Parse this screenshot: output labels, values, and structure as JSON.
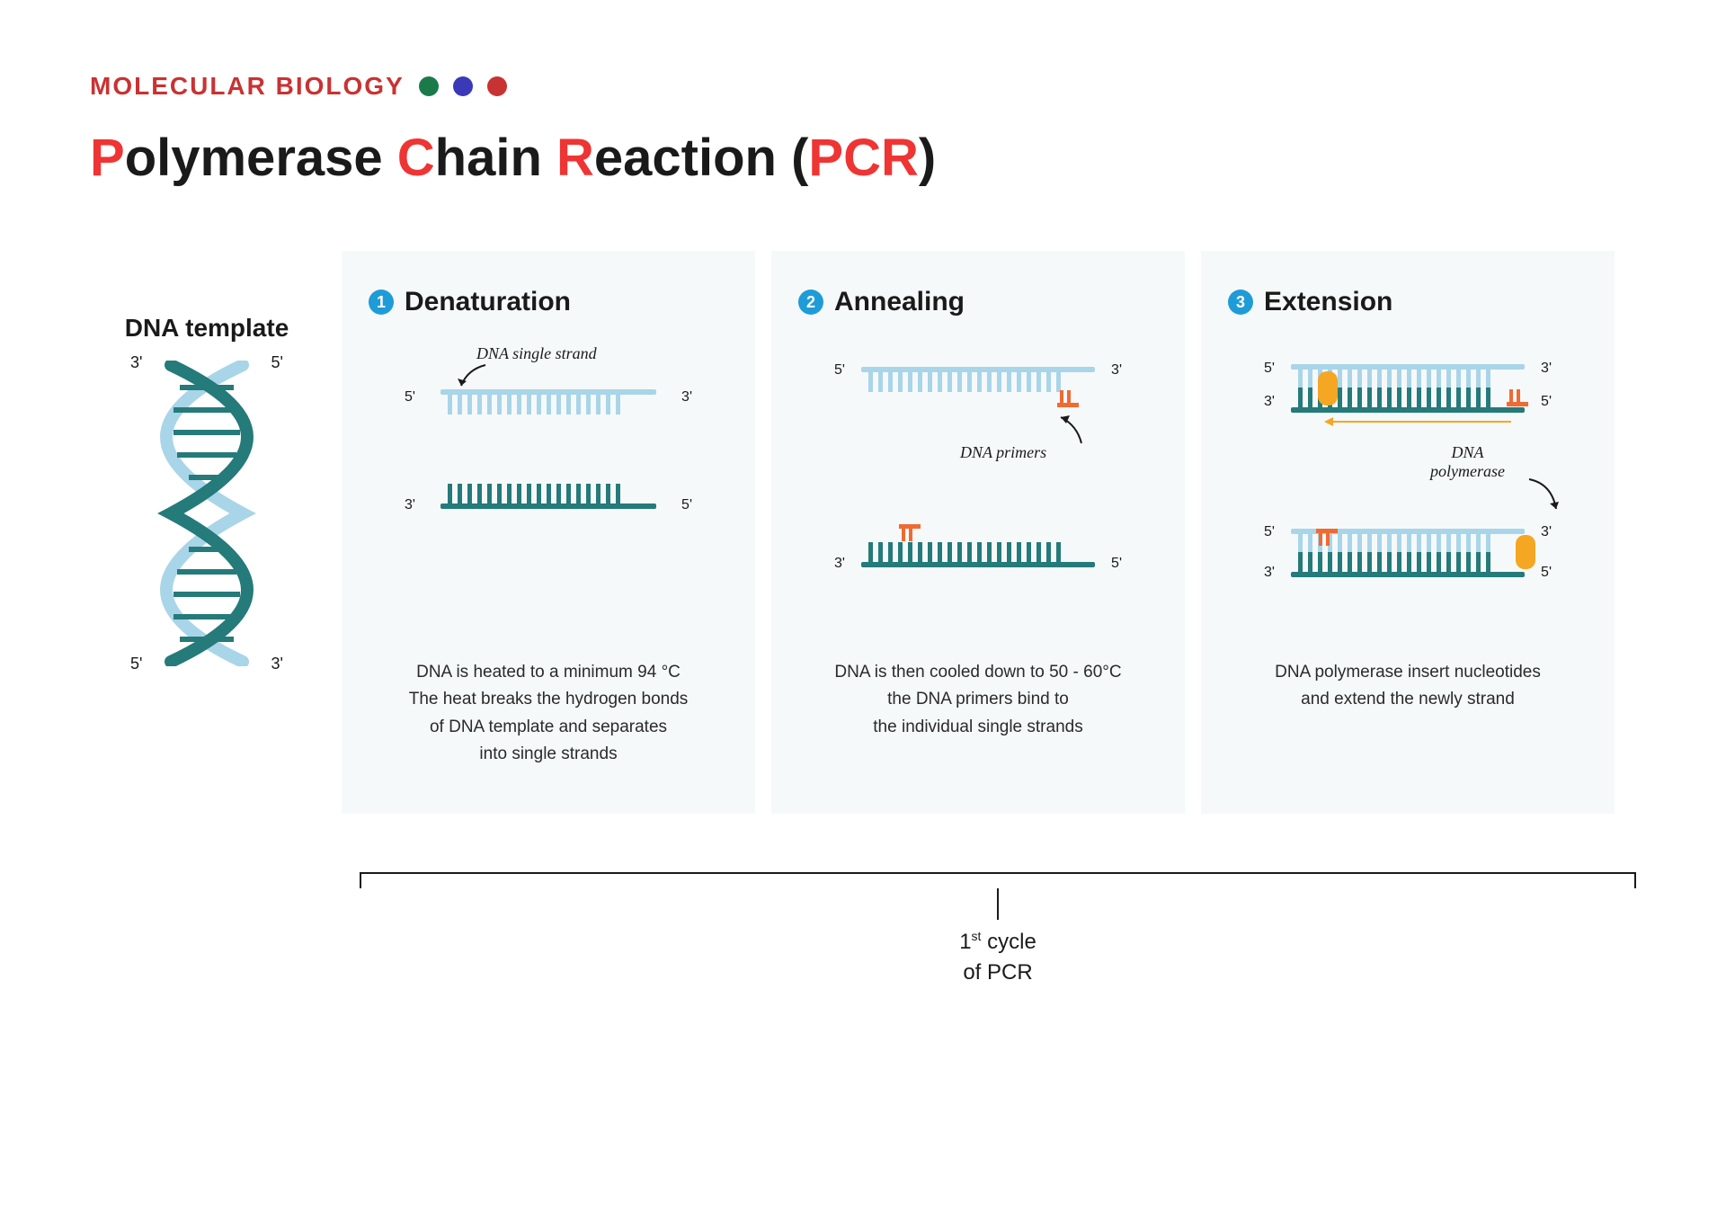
{
  "header": {
    "label": "MOLECULAR BIOLOGY",
    "label_color": "#c93232",
    "dots": [
      "#1a7a4a",
      "#3a3ab8",
      "#c93232"
    ]
  },
  "title": {
    "parts": [
      {
        "text": "P",
        "hl": true
      },
      {
        "text": "olymerase ",
        "hl": false
      },
      {
        "text": "C",
        "hl": true
      },
      {
        "text": "hain ",
        "hl": false
      },
      {
        "text": "R",
        "hl": true
      },
      {
        "text": "eaction (",
        "hl": false
      },
      {
        "text": "PCR",
        "hl": true
      },
      {
        "text": ")",
        "hl": false
      }
    ],
    "highlight_color": "#ef3434",
    "base_color": "#1a1a1a",
    "fontsize": 58
  },
  "template": {
    "title": "DNA template",
    "end_labels": {
      "top_left": "3'",
      "top_right": "5'",
      "bottom_left": "5'",
      "bottom_right": "3'"
    },
    "colors": {
      "dark": "#257a7a",
      "light": "#a9d5e8"
    }
  },
  "steps": [
    {
      "num": "1",
      "title": "Denaturation",
      "annotation": "DNA single strand",
      "top_strand": {
        "color": "#a9d5e8",
        "teeth_down": true,
        "left": "5'",
        "right": "3'"
      },
      "bottom_strand": {
        "color": "#257a7a",
        "teeth_down": false,
        "left": "3'",
        "right": "5'"
      },
      "desc": "DNA is heated to a minimum 94 °C\nThe heat breaks the hydrogen bonds\nof DNA template and separates\ninto single strands"
    },
    {
      "num": "2",
      "title": "Annealing",
      "annotation": "DNA primers",
      "top_strand": {
        "color": "#a9d5e8",
        "teeth_down": true,
        "left": "5'",
        "right": "3'"
      },
      "bottom_strand": {
        "color": "#257a7a",
        "teeth_down": false,
        "left": "3'",
        "right": "5'"
      },
      "primer_color": "#ef6b34",
      "desc": "DNA is then cooled down to 50 - 60°C\nthe DNA primers bind to\nthe individual single strands"
    },
    {
      "num": "3",
      "title": "Extension",
      "annotation": "DNA\npolymerase",
      "top_pair": {
        "template": {
          "color": "#a9d5e8",
          "left": "5'",
          "right": "3'"
        },
        "new": {
          "color": "#257a7a",
          "left": "3'",
          "right": "5'"
        }
      },
      "bottom_pair": {
        "template": {
          "color": "#257a7a",
          "left": "3'",
          "right": "5'"
        },
        "new": {
          "color": "#a9d5e8",
          "left": "5'",
          "right": "3'"
        }
      },
      "polymerase_color": "#f5a623",
      "primer_color": "#ef6b34",
      "arrow_color": "#f5a623",
      "desc": "DNA polymerase insert nucleotides\nand extend the newly strand"
    }
  ],
  "panel_bg": "#f6f9fa",
  "step_num_bg": "#1e9cd8",
  "bracket": {
    "label_line1": "1",
    "label_sup": "st",
    "label_line1b": " cycle",
    "label_line2": "of PCR"
  }
}
